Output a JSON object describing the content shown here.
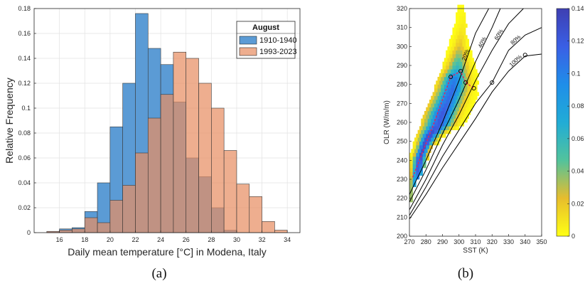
{
  "chart_data": [
    {
      "type": "bar",
      "panel_label": "(a)",
      "title": "",
      "xlabel": "Daily mean temperature [°C] in Modena, Italy",
      "ylabel": "Relative Frequency",
      "xlim": [
        14,
        35
      ],
      "ylim": [
        0,
        0.18
      ],
      "bin_width": 1,
      "bin_starts": [
        15,
        16,
        17,
        18,
        19,
        20,
        21,
        22,
        23,
        24,
        25,
        26,
        27,
        28,
        29,
        30,
        31,
        32,
        33
      ],
      "x_ticks": [
        "16",
        "18",
        "20",
        "22",
        "24",
        "26",
        "28",
        "30",
        "32",
        "34"
      ],
      "y_ticks": [
        "0",
        "0.02",
        "0.04",
        "0.06",
        "0.08",
        "0.1",
        "0.12",
        "0.14",
        "0.16",
        "0.18"
      ],
      "grid": true,
      "legend": {
        "title": "August",
        "placement": "top-right"
      },
      "series": [
        {
          "name": "1910-1940",
          "color": "#5b9bd5",
          "values": [
            0.001,
            0.003,
            0.004,
            0.017,
            0.04,
            0.085,
            0.12,
            0.176,
            0.148,
            0.135,
            0.105,
            0.06,
            0.045,
            0.02,
            0.002,
            0,
            0,
            0,
            0
          ]
        },
        {
          "name": "1993-2023",
          "color": "#e88f64",
          "values": [
            0.001,
            0.002,
            0.003,
            0.012,
            0.008,
            0.026,
            0.038,
            0.064,
            0.092,
            0.111,
            0.145,
            0.14,
            0.12,
            0.1,
            0.066,
            0.039,
            0.029,
            0.009,
            0.002
          ]
        }
      ]
    },
    {
      "type": "heatmap",
      "panel_label": "(b)",
      "title": "",
      "xlabel": "SST (K)",
      "ylabel": "OLR (W/m/m)",
      "xlim": [
        270,
        350
      ],
      "ylim": [
        200,
        320
      ],
      "x_ticks": [
        "270",
        "280",
        "290",
        "300",
        "310",
        "320",
        "330",
        "340",
        "350"
      ],
      "y_ticks": [
        "200",
        "210",
        "220",
        "230",
        "240",
        "250",
        "260",
        "270",
        "280",
        "290",
        "300",
        "310",
        "320"
      ],
      "colorbar": {
        "range": [
          0,
          0.14
        ],
        "tick_values": [
          0,
          0.02,
          0.04,
          0.06,
          0.08,
          0.1,
          0.12,
          0.14
        ],
        "ticks": [
          "0",
          "0.02",
          "0.04",
          "0.06",
          "0.08",
          "0.1",
          "0.12",
          "0.14"
        ],
        "colors": [
          "#ffff14",
          "#e7bd2d",
          "#52c39c",
          "#21acd6",
          "#1f8ee9",
          "#3a5fe5",
          "#3e3fb2"
        ]
      },
      "curves": [
        {
          "label": "20%",
          "points": [
            [
              270,
              222
            ],
            [
              280,
              240
            ],
            [
              290,
              260
            ],
            [
              300,
              282
            ],
            [
              310,
              307
            ],
            [
              318,
              320
            ]
          ],
          "circle": [
            301,
            287
          ]
        },
        {
          "label": "40%",
          "points": [
            [
              270,
              218
            ],
            [
              280,
              235
            ],
            [
              290,
              254
            ],
            [
              300,
              272
            ],
            [
              310,
              292
            ],
            [
              320,
              310
            ],
            [
              325,
              320
            ]
          ],
          "circle": [
            304,
            281
          ]
        },
        {
          "label": "60%",
          "points": [
            [
              270,
              214
            ],
            [
              280,
              230
            ],
            [
              290,
              248
            ],
            [
              300,
              264
            ],
            [
              310,
              282
            ],
            [
              320,
              298
            ],
            [
              330,
              312
            ],
            [
              339,
              320
            ]
          ],
          "circle": [
            309,
            278
          ]
        },
        {
          "label": "80%",
          "points": [
            [
              270,
              211
            ],
            [
              280,
              226
            ],
            [
              290,
              242
            ],
            [
              300,
              256
            ],
            [
              310,
              270
            ],
            [
              320,
              281
            ],
            [
              330,
              298
            ],
            [
              340,
              306
            ],
            [
              350,
              310
            ]
          ],
          "circle": [
            320,
            281
          ]
        },
        {
          "label": "100%",
          "points": [
            [
              270,
              209
            ],
            [
              280,
              222
            ],
            [
              290,
              236
            ],
            [
              300,
              249
            ],
            [
              310,
              262
            ],
            [
              320,
              276
            ],
            [
              330,
              287
            ],
            [
              340,
              295
            ],
            [
              350,
              296
            ]
          ],
          "circle": [
            340,
            295.5
          ]
        }
      ],
      "circle_points": [
        [
          295,
          284
        ]
      ],
      "cloud_edges": [
        {
          "y": 222,
          "xmin": 270,
          "xmax": 271,
          "peak": 0.06
        },
        {
          "y": 228,
          "xmin": 270,
          "xmax": 274,
          "peak": 0.09
        },
        {
          "y": 234,
          "xmin": 270,
          "xmax": 278,
          "peak": 0.12
        },
        {
          "y": 240,
          "xmin": 270,
          "xmax": 281,
          "peak": 0.13
        },
        {
          "y": 246,
          "xmin": 272,
          "xmax": 284,
          "peak": 0.13
        },
        {
          "y": 252,
          "xmin": 274,
          "xmax": 291,
          "peak": 0.13
        },
        {
          "y": 258,
          "xmin": 277,
          "xmax": 303,
          "peak": 0.12
        },
        {
          "y": 264,
          "xmin": 279,
          "xmax": 306,
          "peak": 0.12
        },
        {
          "y": 270,
          "xmin": 282,
          "xmax": 309,
          "peak": 0.11
        },
        {
          "y": 276,
          "xmin": 285,
          "xmax": 311,
          "peak": 0.11
        },
        {
          "y": 282,
          "xmin": 287,
          "xmax": 311,
          "peak": 0.1
        },
        {
          "y": 288,
          "xmin": 290,
          "xmax": 310,
          "peak": 0.06
        },
        {
          "y": 294,
          "xmin": 292,
          "xmax": 308,
          "peak": 0.04
        },
        {
          "y": 300,
          "xmin": 294,
          "xmax": 305,
          "peak": 0.02
        },
        {
          "y": 306,
          "xmin": 296,
          "xmax": 304,
          "peak": 0.01
        },
        {
          "y": 312,
          "xmin": 298,
          "xmax": 303,
          "peak": 0.005
        },
        {
          "y": 318,
          "xmin": 299,
          "xmax": 302,
          "peak": 0.002
        }
      ]
    }
  ]
}
